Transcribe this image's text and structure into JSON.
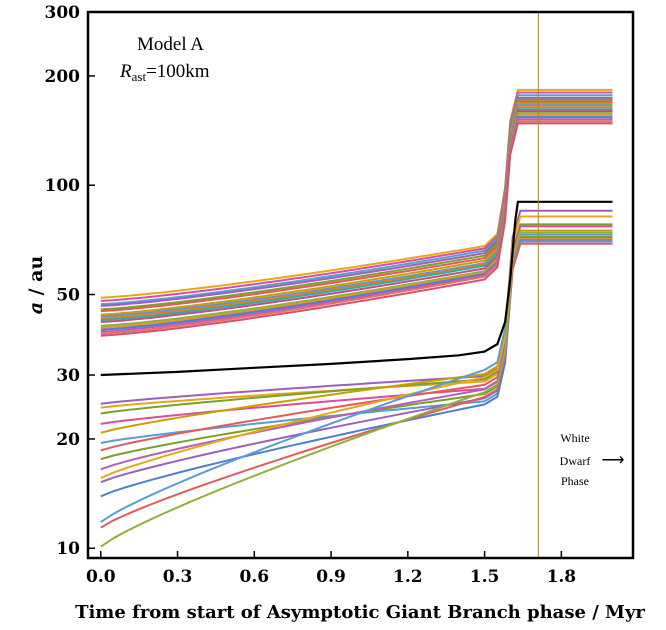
{
  "chart_data": {
    "type": "line",
    "xlabel": "Time from start of Asymptotic Giant Branch phase / Myr",
    "ylabel_italic": "a",
    "ylabel_rest": " / au",
    "y_scale": "log",
    "xlim": [
      -0.05,
      2.08
    ],
    "ylim": [
      9.4,
      300
    ],
    "x_ticks": [
      0.0,
      0.3,
      0.6,
      0.9,
      1.2,
      1.5,
      1.8
    ],
    "x_tick_labels": [
      "0.0",
      "0.3",
      "0.6",
      "0.9",
      "1.2",
      "1.5",
      "1.8"
    ],
    "y_ticks": [
      10,
      20,
      30,
      50,
      100,
      200,
      300
    ],
    "y_tick_labels": [
      "10",
      "20",
      "30",
      "50",
      "100",
      "200",
      "300"
    ],
    "annotation_model": "Model A",
    "annotation_rsym": "R",
    "annotation_rsub": "ast",
    "annotation_rval": "=100km",
    "phase_line_x": 1.71,
    "phase_line_color": "#b8860b",
    "phase_text": [
      "White",
      "Dwarf",
      "Phase"
    ],
    "phase_arrow": "⟶",
    "reference_series": {
      "name": "",
      "color": "#000000",
      "x": [
        0.0,
        0.3,
        0.6,
        0.9,
        1.2,
        1.4,
        1.5,
        1.55,
        1.58,
        1.6,
        1.62,
        1.63,
        2.0
      ],
      "y": [
        30,
        30.6,
        31.4,
        32.2,
        33.2,
        34.0,
        34.8,
        36.5,
        42,
        55,
        80,
        90,
        90
      ]
    },
    "upper_cluster": {
      "x_start": 0.0,
      "x_ramp": 1.5,
      "x_jump_end": 1.63,
      "x_end": 2.0,
      "start_values": [
        49,
        48,
        47,
        46.5,
        45.5,
        45,
        44,
        43.5,
        43,
        42.5,
        42,
        41,
        40.5,
        40,
        39.5,
        39,
        38.5
      ],
      "ramp_values": [
        68,
        67,
        66,
        65,
        64,
        63,
        62,
        61,
        60.5,
        60,
        59,
        58,
        57.5,
        57,
        56.5,
        56,
        55
      ],
      "final_values": [
        183,
        180,
        177,
        174,
        172,
        170,
        168,
        166,
        164,
        162,
        160,
        158,
        156,
        154,
        152,
        150,
        148
      ],
      "colors": [
        "#e6a817",
        "#d64e9c",
        "#5b9bd5",
        "#9b5fc0",
        "#7d9f2a",
        "#e05c5c",
        "#c8a000",
        "#6a8fd8",
        "#e67e22",
        "#2ab0a0",
        "#c44b8a",
        "#8fb03a",
        "#d99a2b",
        "#4d7fd1",
        "#b55fbd",
        "#e36f6f",
        "#d94f6a"
      ]
    },
    "lower_cluster": {
      "x_end": 2.0,
      "start_values": [
        25,
        24.4,
        23.5,
        22,
        20.8,
        19.5,
        18.6,
        17.6,
        16.5,
        15.6,
        15.2,
        13.9,
        11.8,
        11.4,
        10.1
      ],
      "near_values": [
        29.8,
        28.8,
        29.2,
        27.5,
        30.2,
        25.4,
        28.2,
        26.6,
        27.4,
        29.6,
        25.9,
        24.9,
        31.0,
        26.1,
        26.9
      ],
      "final_values": [
        85,
        82,
        78,
        77,
        75,
        73,
        72,
        72,
        71.5,
        71,
        70.5,
        70,
        70,
        69,
        74
      ],
      "colors": [
        "#9b5fc0",
        "#e6a817",
        "#7d9f2a",
        "#d64e9c",
        "#c8a000",
        "#5b9bd5",
        "#e05c5c",
        "#7d9f2a",
        "#b55fbd",
        "#e6a817",
        "#9b5fc0",
        "#4d7fd1",
        "#5b9bd5",
        "#e05c5c",
        "#8fb03a"
      ]
    }
  }
}
